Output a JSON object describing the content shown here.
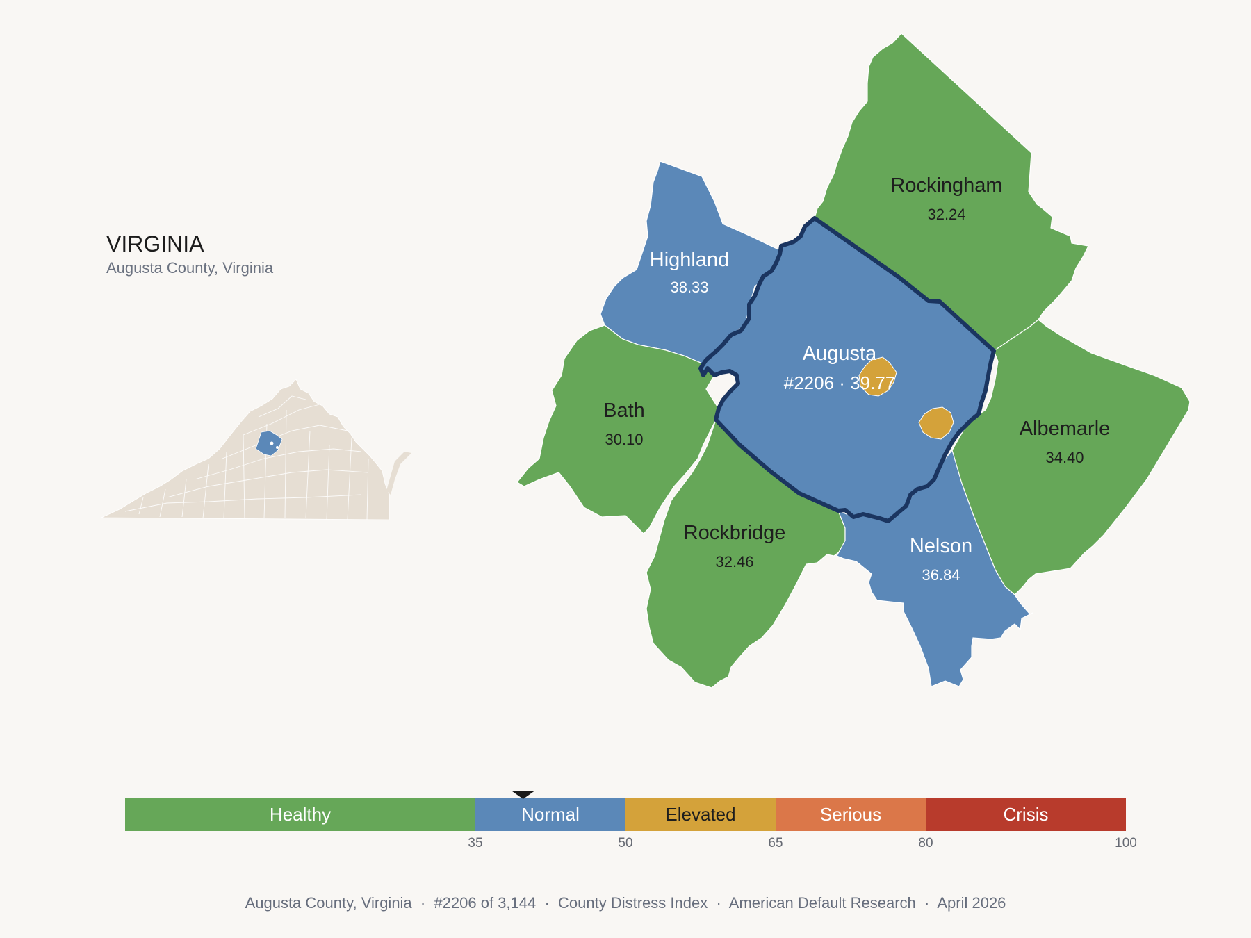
{
  "inset": {
    "state_title": "VIRGINIA",
    "subtitle": "Augusta County, Virginia"
  },
  "colors": {
    "healthy": "#66a758",
    "normal": "#5b88b8",
    "elevated": "#d4a23a",
    "serious": "#db7749",
    "crisis": "#b83b2c",
    "state_fill": "#e6ded3",
    "highlight_border": "#1b3560",
    "background": "#f9f7f4"
  },
  "counties": {
    "rockingham": {
      "name": "Rockingham",
      "value": "32.24",
      "category": "Healthy"
    },
    "highland": {
      "name": "Highland",
      "value": "38.33",
      "category": "Normal"
    },
    "augusta": {
      "name": "Augusta",
      "value": "#2206 · 39.77",
      "category": "Normal"
    },
    "bath": {
      "name": "Bath",
      "value": "30.10",
      "category": "Healthy"
    },
    "albemarle": {
      "name": "Albemarle",
      "value": "34.40",
      "category": "Healthy"
    },
    "rockbridge": {
      "name": "Rockbridge",
      "value": "32.46",
      "category": "Healthy"
    },
    "nelson": {
      "name": "Nelson",
      "value": "36.84",
      "category": "Normal"
    }
  },
  "scale": {
    "min": 0,
    "max": 100,
    "marker_value": 39.77,
    "bands": [
      {
        "label": "Healthy",
        "from": 0,
        "to": 35,
        "color": "#66a758",
        "text_color": "#ffffff"
      },
      {
        "label": "Normal",
        "from": 35,
        "to": 50,
        "color": "#5b88b8",
        "text_color": "#ffffff"
      },
      {
        "label": "Elevated",
        "from": 50,
        "to": 65,
        "color": "#d4a23a",
        "text_color": "#1e1e1e"
      },
      {
        "label": "Serious",
        "from": 65,
        "to": 80,
        "color": "#db7749",
        "text_color": "#ffffff"
      },
      {
        "label": "Crisis",
        "from": 80,
        "to": 100,
        "color": "#b83b2c",
        "text_color": "#ffffff"
      }
    ],
    "ticks": [
      "35",
      "50",
      "65",
      "80",
      "100"
    ]
  },
  "footer": {
    "text": "Augusta County, Virginia  ·  #2206 of 3,144  ·  County Distress Index  ·  American Default Research  ·  April 2026"
  }
}
